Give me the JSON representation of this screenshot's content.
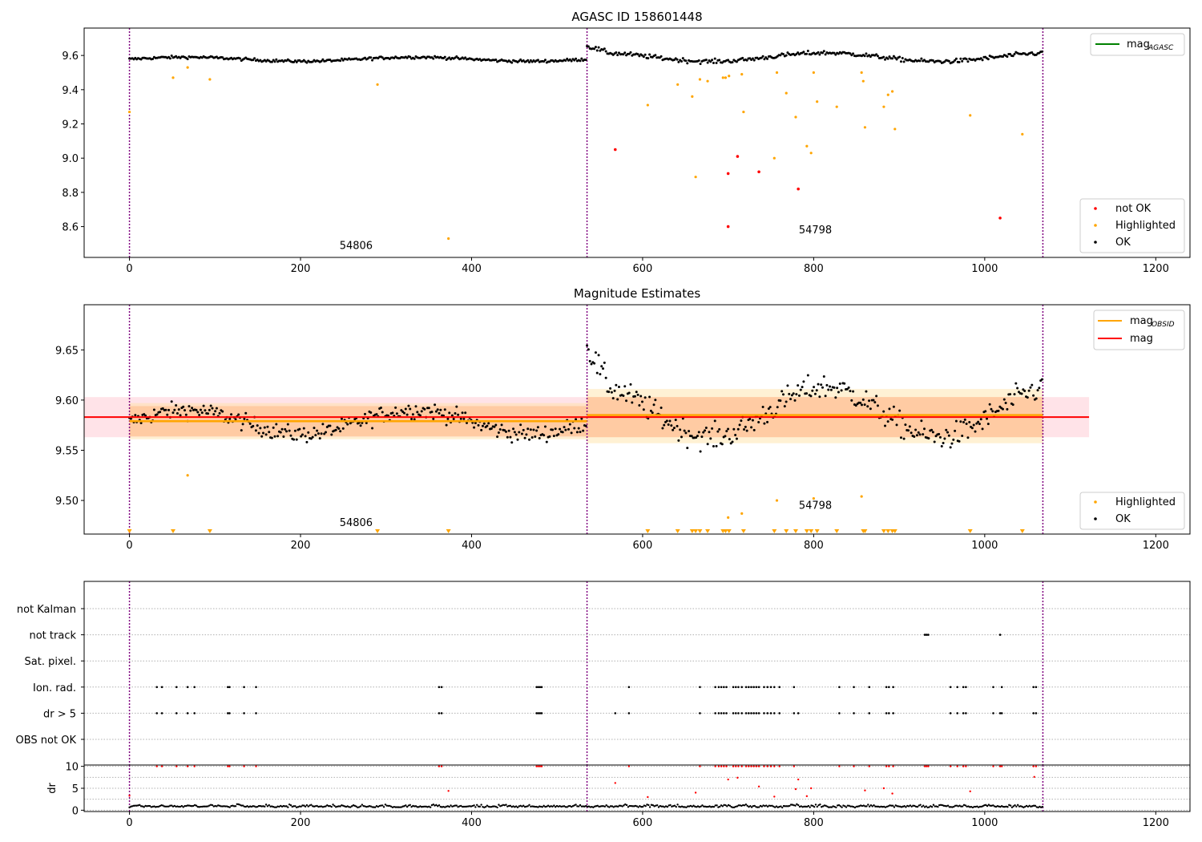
{
  "chart_data": [
    {
      "type": "scatter",
      "title": "AGASC ID 158601448",
      "xlim": [
        -53,
        1240
      ],
      "ylim": [
        8.42,
        9.76
      ],
      "xticks": [
        0,
        200,
        400,
        600,
        800,
        1000,
        1200
      ],
      "yticks": [
        8.6,
        8.8,
        9.0,
        9.2,
        9.4,
        9.6
      ],
      "ytick_labels": [
        "8.6",
        "8.8",
        "9.0",
        "9.2",
        "9.4",
        "9.6"
      ],
      "vlines": [
        0,
        535,
        1068
      ],
      "obsid_labels": [
        {
          "x": 265,
          "y": 8.47,
          "text": "54806"
        },
        {
          "x": 802,
          "y": 8.56,
          "text": "54798"
        }
      ],
      "legend_top": [
        {
          "label": "mag",
          "sub": "AGASC",
          "color": "#008000",
          "kind": "line"
        }
      ],
      "legend_bottom": [
        {
          "label": "not OK",
          "color": "#ff0000",
          "kind": "dot"
        },
        {
          "label": "Highlighted",
          "color": "#ffa500",
          "kind": "dot"
        },
        {
          "label": "OK",
          "color": "#000000",
          "kind": "dot"
        }
      ],
      "segments": [
        {
          "x0": 0,
          "x1": 535,
          "base": 9.578,
          "amp": 0.012,
          "noise": 0.008,
          "phase": 0.0
        },
        {
          "x0": 535,
          "x1": 1068,
          "base": 9.59,
          "amp": 0.025,
          "noise": 0.012,
          "phase": 1.3
        }
      ],
      "highlighted": [
        [
          0,
          9.27
        ],
        [
          51,
          9.47
        ],
        [
          68,
          9.53
        ],
        [
          94,
          9.46
        ],
        [
          290,
          9.43
        ],
        [
          373,
          8.53
        ],
        [
          606,
          9.31
        ],
        [
          641,
          9.43
        ],
        [
          658,
          9.36
        ],
        [
          662,
          8.89
        ],
        [
          667,
          9.46
        ],
        [
          676,
          9.45
        ],
        [
          694,
          9.47
        ],
        [
          697,
          9.47
        ],
        [
          701,
          9.48
        ],
        [
          716,
          9.49
        ],
        [
          718,
          9.27
        ],
        [
          754,
          9.0
        ],
        [
          757,
          9.5
        ],
        [
          768,
          9.38
        ],
        [
          779,
          9.24
        ],
        [
          792,
          9.07
        ],
        [
          797,
          9.03
        ],
        [
          800,
          9.5
        ],
        [
          804,
          9.33
        ],
        [
          827,
          9.3
        ],
        [
          856,
          9.5
        ],
        [
          858,
          9.45
        ],
        [
          860,
          9.18
        ],
        [
          882,
          9.3
        ],
        [
          887,
          9.37
        ],
        [
          892,
          9.39
        ],
        [
          895,
          9.17
        ],
        [
          983,
          9.25
        ],
        [
          1044,
          9.14
        ]
      ],
      "not_ok": [
        [
          568,
          9.05
        ],
        [
          700,
          8.91
        ],
        [
          700,
          8.6
        ],
        [
          711,
          9.01
        ],
        [
          736,
          8.92
        ],
        [
          782,
          8.82
        ],
        [
          1018,
          8.65
        ]
      ]
    },
    {
      "type": "scatter",
      "title": "Magnitude Estimates",
      "xlim": [
        -53,
        1240
      ],
      "ylim": [
        9.4665,
        9.695
      ],
      "xticks": [
        0,
        200,
        400,
        600,
        800,
        1000,
        1200
      ],
      "yticks": [
        9.5,
        9.55,
        9.6,
        9.65
      ],
      "ytick_labels": [
        "9.50",
        "9.55",
        "9.60",
        "9.65"
      ],
      "vlines": [
        0,
        535,
        1068
      ],
      "obsid_labels": [
        {
          "x": 265,
          "y": 9.4745,
          "text": "54806"
        },
        {
          "x": 802,
          "y": 9.4915,
          "text": "54798"
        }
      ],
      "legend_top": [
        {
          "label": "mag",
          "sub": "OBSID",
          "color": "#ffa500",
          "kind": "line"
        },
        {
          "label": "mag",
          "sub": "",
          "color": "#ff0000",
          "kind": "line"
        }
      ],
      "legend_bottom": [
        {
          "label": "Highlighted",
          "color": "#ffa500",
          "kind": "dot"
        },
        {
          "label": "OK",
          "color": "#000000",
          "kind": "dot"
        }
      ],
      "mag_line": {
        "x0": -53,
        "x1": 1122,
        "y": 9.583,
        "band": [
          9.563,
          9.603
        ]
      },
      "obsid_lines": [
        {
          "x0": 0,
          "x1": 535,
          "y": 9.579,
          "band": [
            9.564,
            9.594
          ],
          "band_wide": [
            9.561,
            9.597
          ]
        },
        {
          "x0": 535,
          "x1": 1068,
          "y": 9.585,
          "band": [
            9.563,
            9.603
          ],
          "band_wide": [
            9.557,
            9.611
          ]
        }
      ],
      "highlighted_in_range": [
        [
          68,
          9.525
        ],
        [
          716,
          9.487
        ],
        [
          700,
          9.483
        ],
        [
          757,
          9.5
        ],
        [
          800,
          9.502
        ],
        [
          856,
          9.504
        ]
      ],
      "highlighted_below_range_x": [
        0,
        51,
        94,
        290,
        373,
        606,
        641,
        658,
        662,
        667,
        676,
        694,
        697,
        701,
        718,
        754,
        768,
        779,
        792,
        797,
        804,
        827,
        858,
        860,
        882,
        887,
        892,
        895,
        983,
        1044
      ]
    },
    {
      "type": "scatter",
      "title": "",
      "xlim": [
        -53,
        1240
      ],
      "categories": [
        "not Kalman",
        "not track",
        "Sat. pixel.",
        "Ion. rad.",
        "dr > 5",
        "OBS not OK"
      ],
      "vlines": [
        0,
        535,
        1068
      ],
      "flag_not_track": [
        930,
        932,
        934,
        1018
      ],
      "flag_ion_rad": [
        32,
        38,
        55,
        68,
        76,
        115,
        117,
        134,
        148,
        362,
        365,
        476,
        478,
        480,
        482,
        584,
        667,
        685,
        689,
        692,
        695,
        698,
        706,
        709,
        712,
        716,
        721,
        724,
        727,
        730,
        733,
        736,
        742,
        746,
        750,
        754,
        760,
        777,
        830,
        847,
        865,
        885,
        888,
        893,
        960,
        968,
        975,
        978,
        1010,
        1020,
        1057,
        1060
      ],
      "flag_dr5": [
        32,
        38,
        55,
        68,
        76,
        115,
        117,
        134,
        148,
        362,
        365,
        476,
        478,
        480,
        482,
        568,
        584,
        667,
        685,
        689,
        692,
        695,
        698,
        706,
        709,
        712,
        716,
        721,
        724,
        727,
        730,
        733,
        736,
        742,
        746,
        750,
        754,
        760,
        777,
        782,
        830,
        847,
        865,
        885,
        888,
        893,
        960,
        968,
        975,
        978,
        1010,
        1018,
        1020,
        1057,
        1060
      ]
    },
    {
      "type": "scatter",
      "title": "",
      "xlim": [
        -53,
        1240
      ],
      "ylim": [
        -0.3,
        10.3
      ],
      "yticks": [
        0,
        5,
        10
      ],
      "ytick_labels": [
        "0",
        "5",
        "10"
      ],
      "xticks": [
        0,
        200,
        400,
        600,
        800,
        1000,
        1200
      ],
      "ylabel": "dr",
      "vlines": [
        0,
        535,
        1068
      ],
      "red_high_x": [
        32,
        38,
        55,
        68,
        76,
        115,
        117,
        134,
        148,
        362,
        365,
        476,
        478,
        480,
        482,
        584,
        667,
        685,
        689,
        692,
        695,
        698,
        706,
        709,
        712,
        716,
        721,
        724,
        727,
        730,
        733,
        736,
        742,
        746,
        750,
        754,
        760,
        777,
        830,
        847,
        865,
        885,
        888,
        893,
        930,
        932,
        934,
        960,
        968,
        975,
        978,
        1010,
        1018,
        1020,
        1057,
        1060
      ],
      "red_mid": [
        [
          0,
          3.3
        ],
        [
          373,
          4.4
        ],
        [
          568,
          6.2
        ],
        [
          606,
          3.0
        ],
        [
          662,
          4.0
        ],
        [
          700,
          7.0
        ],
        [
          711,
          7.4
        ],
        [
          736,
          5.4
        ],
        [
          754,
          3.1
        ],
        [
          779,
          4.8
        ],
        [
          782,
          7.0
        ],
        [
          792,
          3.2
        ],
        [
          797,
          5.0
        ],
        [
          860,
          4.5
        ],
        [
          882,
          5.0
        ],
        [
          892,
          3.8
        ],
        [
          983,
          4.3
        ],
        [
          1058,
          7.6
        ]
      ]
    }
  ]
}
